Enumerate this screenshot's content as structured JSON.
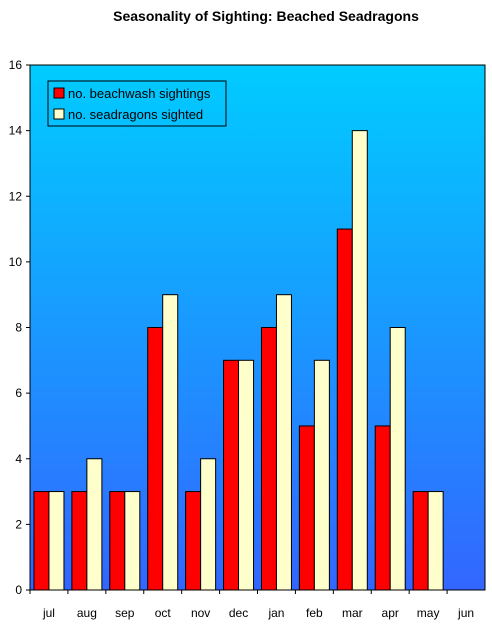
{
  "chart_data": {
    "type": "bar",
    "title": "Seasonality of Sighting: Beached Seadragons",
    "xlabel": "",
    "ylabel": "",
    "categories": [
      "jul",
      "aug",
      "sep",
      "oct",
      "nov",
      "dec",
      "jan",
      "feb",
      "mar",
      "apr",
      "may",
      "jun"
    ],
    "series": [
      {
        "name": "no. beachwash sightings",
        "color": "#ff0000",
        "values": [
          3,
          3,
          3,
          8,
          3,
          7,
          8,
          5,
          11,
          5,
          3,
          0
        ]
      },
      {
        "name": "no. seadragons sighted",
        "color": "#ffffcc",
        "values": [
          3,
          4,
          3,
          9,
          4,
          7,
          9,
          7,
          14,
          8,
          3,
          0
        ]
      }
    ],
    "ylim": [
      0,
      16
    ],
    "yticks": [
      0,
      2,
      4,
      6,
      8,
      10,
      12,
      14,
      16
    ],
    "legend_position": "top-left",
    "grid": false,
    "background_gradient": [
      "#00ccff",
      "#3366ff"
    ]
  }
}
